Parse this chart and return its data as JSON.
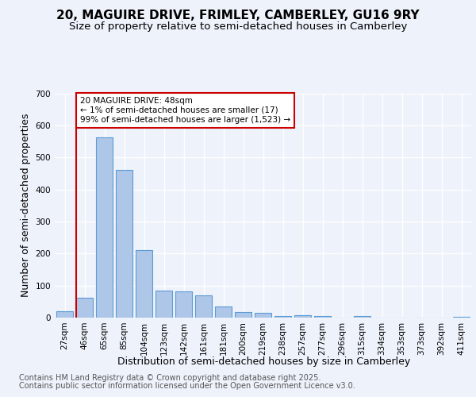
{
  "title_line1": "20, MAGUIRE DRIVE, FRIMLEY, CAMBERLEY, GU16 9RY",
  "title_line2": "Size of property relative to semi-detached houses in Camberley",
  "xlabel": "Distribution of semi-detached houses by size in Camberley",
  "ylabel": "Number of semi-detached properties",
  "categories": [
    "27sqm",
    "46sqm",
    "65sqm",
    "85sqm",
    "104sqm",
    "123sqm",
    "142sqm",
    "161sqm",
    "181sqm",
    "200sqm",
    "219sqm",
    "238sqm",
    "257sqm",
    "277sqm",
    "296sqm",
    "315sqm",
    "334sqm",
    "353sqm",
    "373sqm",
    "392sqm",
    "411sqm"
  ],
  "values": [
    20,
    62,
    563,
    460,
    210,
    85,
    83,
    70,
    35,
    18,
    14,
    5,
    8,
    5,
    0,
    5,
    0,
    0,
    0,
    0,
    2
  ],
  "bar_color": "#aec6e8",
  "bar_edge_color": "#5b9bd5",
  "highlight_line_color": "#cc0000",
  "annotation_text": "20 MAGUIRE DRIVE: 48sqm\n← 1% of semi-detached houses are smaller (17)\n99% of semi-detached houses are larger (1,523) →",
  "annotation_box_color": "#cc0000",
  "ylim": [
    0,
    700
  ],
  "yticks": [
    0,
    100,
    200,
    300,
    400,
    500,
    600,
    700
  ],
  "background_color": "#eef2fb",
  "footer_line1": "Contains HM Land Registry data © Crown copyright and database right 2025.",
  "footer_line2": "Contains public sector information licensed under the Open Government Licence v3.0.",
  "grid_color": "#ffffff",
  "title_fontsize": 11,
  "subtitle_fontsize": 9.5,
  "axis_label_fontsize": 9,
  "tick_fontsize": 7.5,
  "footer_fontsize": 7
}
